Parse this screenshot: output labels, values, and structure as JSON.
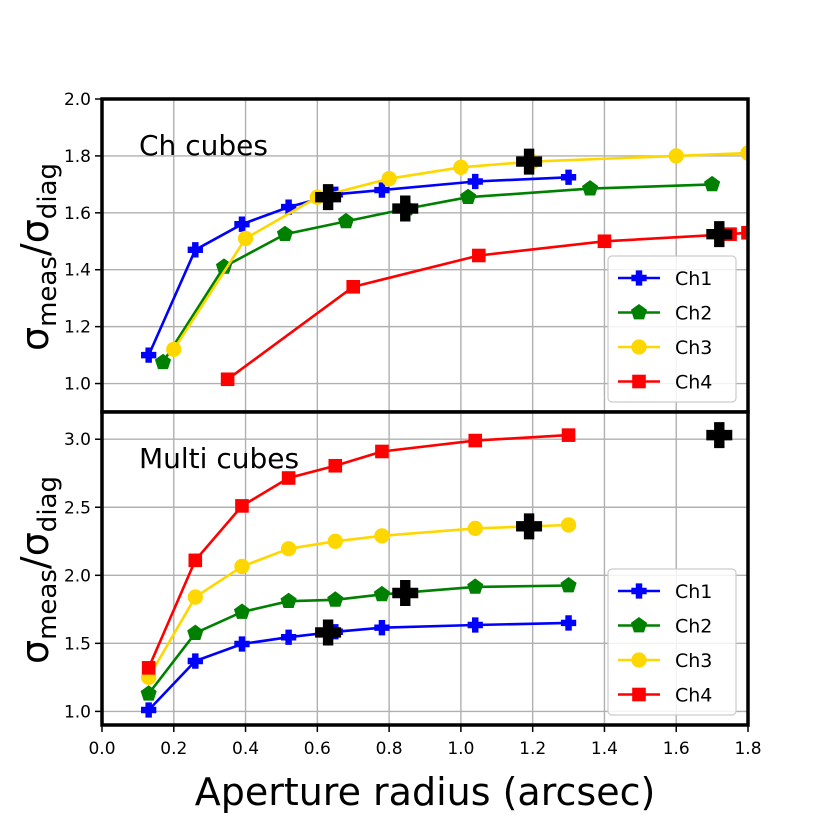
{
  "figure": {
    "xlabel": "Aperture radius (arcsec)",
    "ylabel_base": "σ",
    "ylabel_sub1": "meas",
    "ylabel_slash": "/σ",
    "ylabel_sub2": "diag"
  },
  "chart_data": [
    {
      "type": "line",
      "annotation": "Ch cubes",
      "xlim": [
        0.0,
        1.8
      ],
      "ylim": [
        0.9,
        2.0
      ],
      "xticks": [
        0.0,
        0.2,
        0.4,
        0.6,
        0.8,
        1.0,
        1.2,
        1.4,
        1.6,
        1.8
      ],
      "yticks": [
        1.0,
        1.2,
        1.4,
        1.6,
        1.8,
        2.0
      ],
      "ytick_labels": [
        "1.0",
        "1.2",
        "1.4",
        "1.6",
        "1.8",
        "2.0"
      ],
      "grid": true,
      "legend": "lower-right",
      "series": [
        {
          "name": "Ch1",
          "color": "#0000ff",
          "marker": "plus",
          "x": [
            0.13,
            0.26,
            0.39,
            0.52,
            0.65,
            0.78,
            1.04,
            1.3
          ],
          "y": [
            1.1,
            1.47,
            1.56,
            1.62,
            1.665,
            1.68,
            1.71,
            1.725
          ]
        },
        {
          "name": "Ch2",
          "color": "#008000",
          "marker": "pentagon",
          "x": [
            0.17,
            0.34,
            0.51,
            0.68,
            0.85,
            1.02,
            1.36,
            1.7
          ],
          "y": [
            1.075,
            1.41,
            1.525,
            1.57,
            1.615,
            1.655,
            1.685,
            1.7
          ]
        },
        {
          "name": "Ch3",
          "color": "#ffd700",
          "marker": "circle",
          "x": [
            0.2,
            0.4,
            0.6,
            0.8,
            1.0,
            1.2,
            1.6,
            1.8
          ],
          "y": [
            1.12,
            1.51,
            1.655,
            1.72,
            1.76,
            1.78,
            1.8,
            1.81
          ]
        },
        {
          "name": "Ch4",
          "color": "#ff0000",
          "marker": "square",
          "x": [
            0.35,
            0.7,
            1.05,
            1.4,
            1.75,
            1.8
          ],
          "y": [
            1.015,
            1.34,
            1.45,
            1.5,
            1.525,
            1.53
          ]
        }
      ],
      "fwhm_markers": [
        {
          "x": 0.63,
          "y": 1.655
        },
        {
          "x": 0.845,
          "y": 1.615
        },
        {
          "x": 1.19,
          "y": 1.78
        },
        {
          "x": 1.72,
          "y": 1.525
        }
      ]
    },
    {
      "type": "line",
      "annotation": "Multi cubes",
      "xlim": [
        0.0,
        1.8
      ],
      "ylim": [
        0.9,
        3.2
      ],
      "xticks": [
        0.0,
        0.2,
        0.4,
        0.6,
        0.8,
        1.0,
        1.2,
        1.4,
        1.6,
        1.8
      ],
      "xtick_labels": [
        "0.0",
        "0.2",
        "0.4",
        "0.6",
        "0.8",
        "1.0",
        "1.2",
        "1.4",
        "1.6",
        "1.8"
      ],
      "yticks": [
        1.0,
        1.5,
        2.0,
        2.5,
        3.0
      ],
      "ytick_labels": [
        "1.0",
        "1.5",
        "2.0",
        "2.5",
        "3.0"
      ],
      "grid": true,
      "legend": "lower-right",
      "series": [
        {
          "name": "Ch1",
          "color": "#0000ff",
          "marker": "plus",
          "x": [
            0.13,
            0.26,
            0.39,
            0.52,
            0.65,
            0.78,
            1.04,
            1.3
          ],
          "y": [
            1.01,
            1.37,
            1.495,
            1.545,
            1.585,
            1.615,
            1.635,
            1.65
          ]
        },
        {
          "name": "Ch2",
          "color": "#008000",
          "marker": "pentagon",
          "x": [
            0.13,
            0.26,
            0.39,
            0.52,
            0.65,
            0.78,
            1.04,
            1.3
          ],
          "y": [
            1.13,
            1.575,
            1.73,
            1.81,
            1.82,
            1.86,
            1.915,
            1.925
          ]
        },
        {
          "name": "Ch3",
          "color": "#ffd700",
          "marker": "circle",
          "x": [
            0.13,
            0.26,
            0.39,
            0.52,
            0.65,
            0.78,
            1.04,
            1.3
          ],
          "y": [
            1.25,
            1.84,
            2.065,
            2.195,
            2.25,
            2.29,
            2.345,
            2.37
          ]
        },
        {
          "name": "Ch4",
          "color": "#ff0000",
          "marker": "square",
          "x": [
            0.13,
            0.26,
            0.39,
            0.52,
            0.65,
            0.78,
            1.04,
            1.3
          ],
          "y": [
            1.32,
            2.11,
            2.51,
            2.715,
            2.805,
            2.91,
            2.99,
            3.03
          ]
        }
      ],
      "fwhm_markers": [
        {
          "x": 0.63,
          "y": 1.58
        },
        {
          "x": 0.845,
          "y": 1.87
        },
        {
          "x": 1.19,
          "y": 2.36
        },
        {
          "x": 1.72,
          "y": 3.03
        }
      ]
    }
  ]
}
